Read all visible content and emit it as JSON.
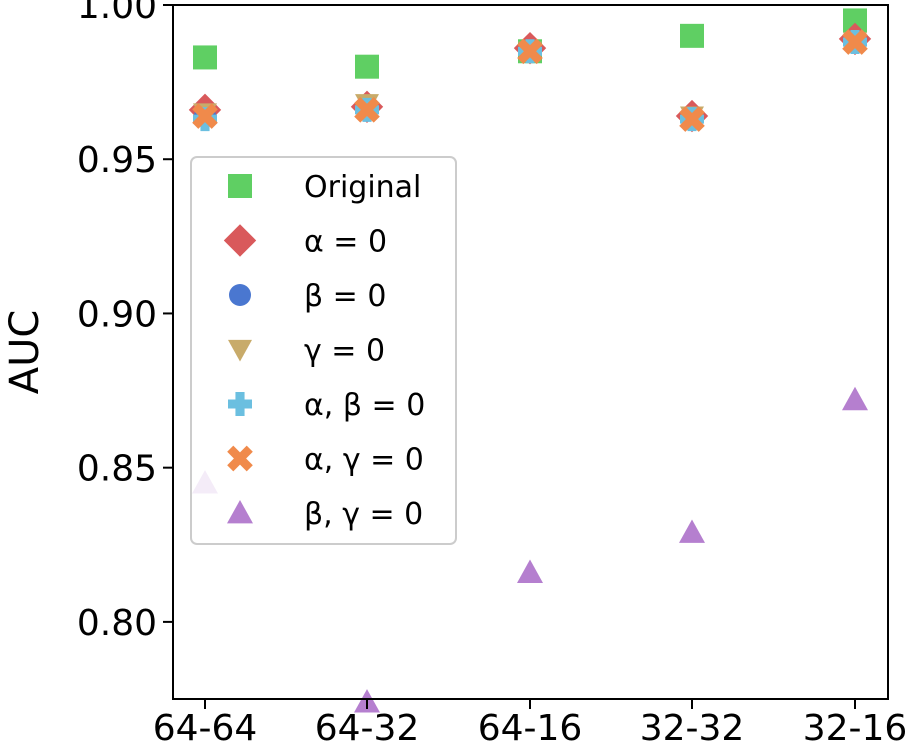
{
  "chart_data": {
    "type": "scatter",
    "title": "",
    "xlabel": "",
    "ylabel": "AUC",
    "categories": [
      "64-64",
      "64-32",
      "64-16",
      "32-32",
      "32-16"
    ],
    "ylim": [
      0.775,
      1.0
    ],
    "yticks": [
      "0.80",
      "0.85",
      "0.90",
      "0.95",
      "1.00"
    ],
    "ytick_values": [
      0.8,
      0.85,
      0.9,
      0.95,
      1.0
    ],
    "grid": false,
    "legend_position": "center-left",
    "series": [
      {
        "name": "Original",
        "marker": "square",
        "color": "#5fcf63",
        "values": [
          0.983,
          0.98,
          0.985,
          0.99,
          0.995
        ]
      },
      {
        "name": "α = 0",
        "marker": "diamond",
        "color": "#d9595b",
        "values": [
          0.966,
          0.967,
          0.986,
          0.964,
          0.989
        ]
      },
      {
        "name": "β = 0",
        "marker": "circle",
        "color": "#4a77d0",
        "values": [
          0.964,
          0.966,
          0.985,
          0.963,
          0.988
        ]
      },
      {
        "name": "γ = 0",
        "marker": "triangle-down",
        "color": "#c8ab6a",
        "values": [
          0.965,
          0.968,
          0.985,
          0.964,
          0.988
        ]
      },
      {
        "name": "α, β = 0",
        "marker": "plus",
        "color": "#6bbfe0",
        "values": [
          0.963,
          0.966,
          0.985,
          0.963,
          0.988
        ]
      },
      {
        "name": "α, γ = 0",
        "marker": "x",
        "color": "#f08a4b",
        "values": [
          0.964,
          0.966,
          0.985,
          0.963,
          0.988
        ]
      },
      {
        "name": "β, γ = 0",
        "marker": "triangle-up",
        "color": "#b57fcf",
        "values": [
          0.845,
          0.774,
          0.816,
          0.829,
          0.872
        ]
      }
    ]
  }
}
